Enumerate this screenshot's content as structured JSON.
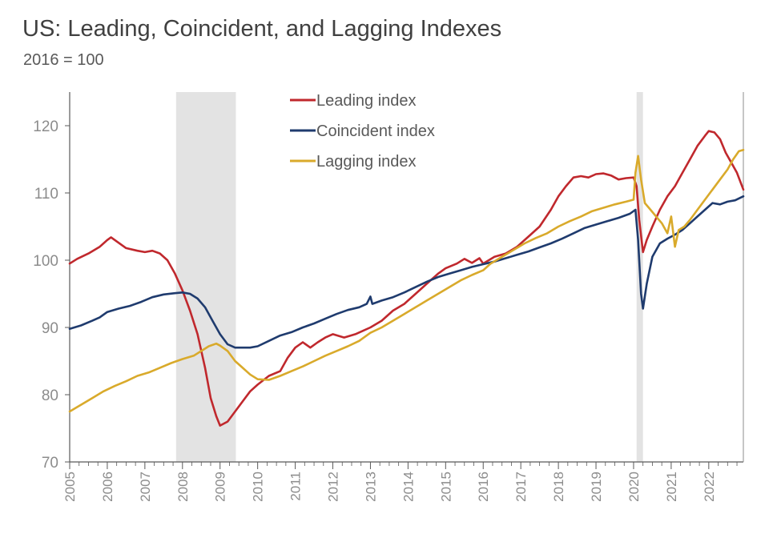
{
  "colors": {
    "leading": "#c0282d",
    "coincident": "#1f3b6e",
    "lagging": "#d9aa2b",
    "recession": "#e3e3e3",
    "axis": "#595959"
  },
  "chart_data": {
    "type": "line",
    "title": "US: Leading, Coincident, and Lagging Indexes",
    "subtitle": "2016 = 100",
    "xlabel": "",
    "ylabel": "",
    "xlim": [
      2005.0,
      2022.92
    ],
    "ylim": [
      70,
      125
    ],
    "yticks": [
      70,
      80,
      90,
      100,
      110,
      120
    ],
    "xticks": [
      "2005",
      "2006",
      "2007",
      "2008",
      "2009",
      "2010",
      "2011",
      "2012",
      "2013",
      "2014",
      "2015",
      "2016",
      "2017",
      "2018",
      "2019",
      "2020",
      "2021",
      "2022"
    ],
    "recession_shading": [
      [
        2007.83,
        2009.42
      ],
      [
        2020.08,
        2020.25
      ]
    ],
    "legend_position": "top-center",
    "series": [
      {
        "name": "Leading index",
        "color_key": "leading",
        "points": [
          [
            2005.0,
            99.5
          ],
          [
            2005.2,
            100.2
          ],
          [
            2005.5,
            101.0
          ],
          [
            2005.8,
            102.0
          ],
          [
            2006.0,
            103.0
          ],
          [
            2006.1,
            103.4
          ],
          [
            2006.3,
            102.6
          ],
          [
            2006.5,
            101.8
          ],
          [
            2006.8,
            101.4
          ],
          [
            2007.0,
            101.2
          ],
          [
            2007.2,
            101.4
          ],
          [
            2007.4,
            101.0
          ],
          [
            2007.6,
            100.0
          ],
          [
            2007.8,
            98.0
          ],
          [
            2008.0,
            95.5
          ],
          [
            2008.2,
            92.5
          ],
          [
            2008.4,
            89.0
          ],
          [
            2008.6,
            84.0
          ],
          [
            2008.75,
            79.5
          ],
          [
            2008.9,
            76.8
          ],
          [
            2009.0,
            75.4
          ],
          [
            2009.2,
            76.0
          ],
          [
            2009.4,
            77.5
          ],
          [
            2009.6,
            79.0
          ],
          [
            2009.8,
            80.5
          ],
          [
            2010.0,
            81.5
          ],
          [
            2010.3,
            82.8
          ],
          [
            2010.6,
            83.5
          ],
          [
            2010.8,
            85.5
          ],
          [
            2011.0,
            87.0
          ],
          [
            2011.2,
            87.8
          ],
          [
            2011.4,
            87.0
          ],
          [
            2011.6,
            87.8
          ],
          [
            2011.8,
            88.5
          ],
          [
            2012.0,
            89.0
          ],
          [
            2012.3,
            88.5
          ],
          [
            2012.6,
            89.0
          ],
          [
            2012.8,
            89.5
          ],
          [
            2013.0,
            90.0
          ],
          [
            2013.3,
            91.0
          ],
          [
            2013.6,
            92.5
          ],
          [
            2013.9,
            93.5
          ],
          [
            2014.2,
            95.0
          ],
          [
            2014.5,
            96.5
          ],
          [
            2014.8,
            98.0
          ],
          [
            2015.0,
            98.8
          ],
          [
            2015.3,
            99.5
          ],
          [
            2015.5,
            100.2
          ],
          [
            2015.7,
            99.6
          ],
          [
            2015.9,
            100.3
          ],
          [
            2016.0,
            99.5
          ],
          [
            2016.3,
            100.5
          ],
          [
            2016.6,
            101.0
          ],
          [
            2016.9,
            102.0
          ],
          [
            2017.2,
            103.5
          ],
          [
            2017.5,
            105.0
          ],
          [
            2017.8,
            107.5
          ],
          [
            2018.0,
            109.5
          ],
          [
            2018.2,
            111.0
          ],
          [
            2018.4,
            112.3
          ],
          [
            2018.6,
            112.5
          ],
          [
            2018.8,
            112.3
          ],
          [
            2019.0,
            112.8
          ],
          [
            2019.2,
            112.9
          ],
          [
            2019.4,
            112.6
          ],
          [
            2019.6,
            112.0
          ],
          [
            2019.8,
            112.2
          ],
          [
            2020.0,
            112.3
          ],
          [
            2020.08,
            111.0
          ],
          [
            2020.15,
            106.0
          ],
          [
            2020.25,
            101.2
          ],
          [
            2020.35,
            103.0
          ],
          [
            2020.5,
            105.0
          ],
          [
            2020.7,
            107.5
          ],
          [
            2020.9,
            109.5
          ],
          [
            2021.1,
            111.0
          ],
          [
            2021.3,
            113.0
          ],
          [
            2021.5,
            115.0
          ],
          [
            2021.7,
            117.0
          ],
          [
            2021.9,
            118.5
          ],
          [
            2022.0,
            119.2
          ],
          [
            2022.15,
            119.0
          ],
          [
            2022.3,
            118.0
          ],
          [
            2022.45,
            116.0
          ],
          [
            2022.6,
            114.5
          ],
          [
            2022.75,
            113.0
          ],
          [
            2022.92,
            110.5
          ]
        ]
      },
      {
        "name": "Coincident index",
        "color_key": "coincident",
        "points": [
          [
            2005.0,
            89.8
          ],
          [
            2005.3,
            90.3
          ],
          [
            2005.6,
            91.0
          ],
          [
            2005.8,
            91.5
          ],
          [
            2006.0,
            92.3
          ],
          [
            2006.3,
            92.8
          ],
          [
            2006.6,
            93.2
          ],
          [
            2006.9,
            93.8
          ],
          [
            2007.2,
            94.5
          ],
          [
            2007.5,
            94.9
          ],
          [
            2007.8,
            95.1
          ],
          [
            2008.0,
            95.2
          ],
          [
            2008.2,
            95.0
          ],
          [
            2008.4,
            94.3
          ],
          [
            2008.6,
            93.0
          ],
          [
            2008.8,
            91.0
          ],
          [
            2009.0,
            89.0
          ],
          [
            2009.2,
            87.5
          ],
          [
            2009.4,
            87.0
          ],
          [
            2009.6,
            87.0
          ],
          [
            2009.8,
            87.0
          ],
          [
            2010.0,
            87.2
          ],
          [
            2010.3,
            88.0
          ],
          [
            2010.6,
            88.8
          ],
          [
            2010.9,
            89.3
          ],
          [
            2011.2,
            90.0
          ],
          [
            2011.5,
            90.6
          ],
          [
            2011.8,
            91.3
          ],
          [
            2012.1,
            92.0
          ],
          [
            2012.4,
            92.6
          ],
          [
            2012.7,
            93.0
          ],
          [
            2012.9,
            93.5
          ],
          [
            2013.0,
            94.6
          ],
          [
            2013.05,
            93.5
          ],
          [
            2013.3,
            94.0
          ],
          [
            2013.6,
            94.5
          ],
          [
            2013.9,
            95.2
          ],
          [
            2014.2,
            96.0
          ],
          [
            2014.5,
            96.8
          ],
          [
            2014.8,
            97.5
          ],
          [
            2015.1,
            98.0
          ],
          [
            2015.4,
            98.5
          ],
          [
            2015.7,
            99.0
          ],
          [
            2016.0,
            99.4
          ],
          [
            2016.3,
            99.8
          ],
          [
            2016.6,
            100.3
          ],
          [
            2016.9,
            100.8
          ],
          [
            2017.2,
            101.3
          ],
          [
            2017.5,
            101.9
          ],
          [
            2017.8,
            102.5
          ],
          [
            2018.1,
            103.2
          ],
          [
            2018.4,
            104.0
          ],
          [
            2018.7,
            104.8
          ],
          [
            2019.0,
            105.3
          ],
          [
            2019.3,
            105.8
          ],
          [
            2019.6,
            106.3
          ],
          [
            2019.9,
            106.9
          ],
          [
            2020.05,
            107.5
          ],
          [
            2020.12,
            103.0
          ],
          [
            2020.2,
            95.0
          ],
          [
            2020.25,
            92.8
          ],
          [
            2020.35,
            96.5
          ],
          [
            2020.5,
            100.5
          ],
          [
            2020.7,
            102.5
          ],
          [
            2020.9,
            103.2
          ],
          [
            2021.1,
            103.8
          ],
          [
            2021.3,
            104.5
          ],
          [
            2021.5,
            105.5
          ],
          [
            2021.7,
            106.5
          ],
          [
            2021.9,
            107.5
          ],
          [
            2022.1,
            108.5
          ],
          [
            2022.3,
            108.3
          ],
          [
            2022.5,
            108.7
          ],
          [
            2022.7,
            108.9
          ],
          [
            2022.92,
            109.5
          ]
        ]
      },
      {
        "name": "Lagging index",
        "color_key": "lagging",
        "points": [
          [
            2005.0,
            77.5
          ],
          [
            2005.3,
            78.5
          ],
          [
            2005.6,
            79.5
          ],
          [
            2005.9,
            80.5
          ],
          [
            2006.2,
            81.3
          ],
          [
            2006.5,
            82.0
          ],
          [
            2006.8,
            82.8
          ],
          [
            2007.1,
            83.3
          ],
          [
            2007.4,
            84.0
          ],
          [
            2007.7,
            84.7
          ],
          [
            2008.0,
            85.3
          ],
          [
            2008.3,
            85.8
          ],
          [
            2008.5,
            86.5
          ],
          [
            2008.7,
            87.2
          ],
          [
            2008.9,
            87.6
          ],
          [
            2009.0,
            87.3
          ],
          [
            2009.2,
            86.5
          ],
          [
            2009.4,
            85.0
          ],
          [
            2009.6,
            84.0
          ],
          [
            2009.8,
            83.0
          ],
          [
            2010.0,
            82.3
          ],
          [
            2010.3,
            82.2
          ],
          [
            2010.6,
            82.8
          ],
          [
            2010.9,
            83.5
          ],
          [
            2011.2,
            84.2
          ],
          [
            2011.5,
            85.0
          ],
          [
            2011.8,
            85.8
          ],
          [
            2012.1,
            86.5
          ],
          [
            2012.4,
            87.2
          ],
          [
            2012.7,
            88.0
          ],
          [
            2013.0,
            89.2
          ],
          [
            2013.3,
            90.0
          ],
          [
            2013.6,
            91.0
          ],
          [
            2013.9,
            92.0
          ],
          [
            2014.2,
            93.0
          ],
          [
            2014.5,
            94.0
          ],
          [
            2014.8,
            95.0
          ],
          [
            2015.1,
            96.0
          ],
          [
            2015.4,
            97.0
          ],
          [
            2015.7,
            97.8
          ],
          [
            2016.0,
            98.5
          ],
          [
            2016.2,
            99.5
          ],
          [
            2016.5,
            100.5
          ],
          [
            2016.8,
            101.5
          ],
          [
            2017.1,
            102.5
          ],
          [
            2017.4,
            103.3
          ],
          [
            2017.7,
            104.0
          ],
          [
            2018.0,
            105.0
          ],
          [
            2018.3,
            105.8
          ],
          [
            2018.6,
            106.5
          ],
          [
            2018.9,
            107.3
          ],
          [
            2019.2,
            107.8
          ],
          [
            2019.5,
            108.3
          ],
          [
            2019.8,
            108.7
          ],
          [
            2020.0,
            109.0
          ],
          [
            2020.05,
            113.0
          ],
          [
            2020.12,
            115.5
          ],
          [
            2020.2,
            112.0
          ],
          [
            2020.3,
            108.5
          ],
          [
            2020.45,
            107.5
          ],
          [
            2020.6,
            106.5
          ],
          [
            2020.75,
            105.5
          ],
          [
            2020.9,
            104.0
          ],
          [
            2021.0,
            106.5
          ],
          [
            2021.1,
            102.0
          ],
          [
            2021.2,
            104.5
          ],
          [
            2021.35,
            105.0
          ],
          [
            2021.5,
            106.0
          ],
          [
            2021.7,
            107.5
          ],
          [
            2021.9,
            109.0
          ],
          [
            2022.1,
            110.5
          ],
          [
            2022.3,
            112.0
          ],
          [
            2022.5,
            113.5
          ],
          [
            2022.65,
            115.0
          ],
          [
            2022.8,
            116.2
          ],
          [
            2022.92,
            116.4
          ]
        ]
      }
    ]
  }
}
